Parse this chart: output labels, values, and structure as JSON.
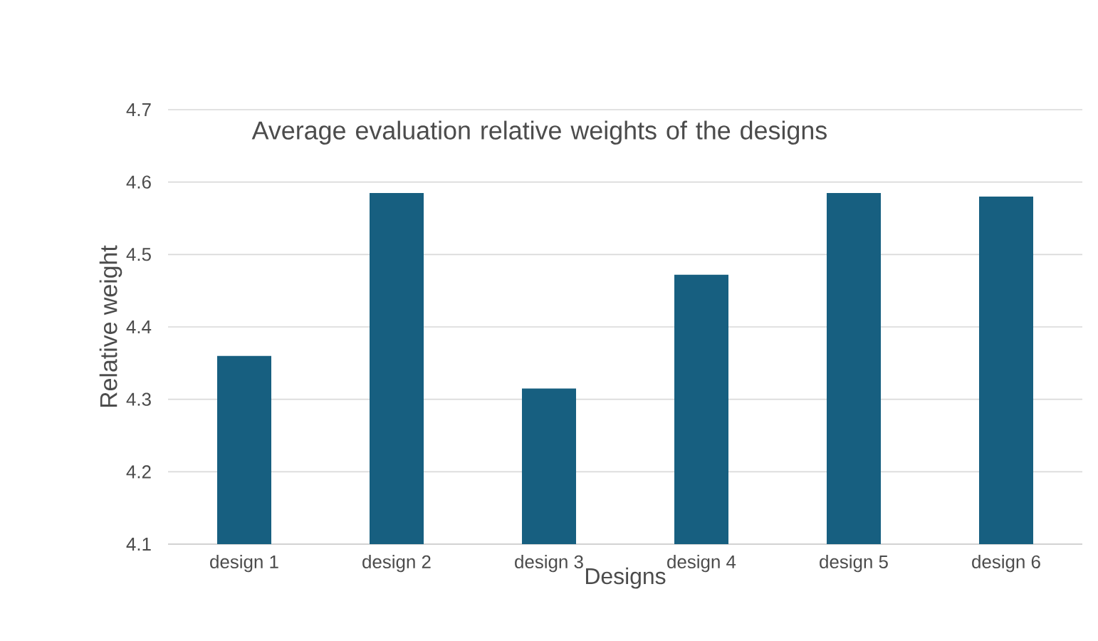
{
  "chart_data": {
    "type": "bar",
    "title": "Average evaluation relative weights of the designs",
    "xlabel": "Designs",
    "ylabel": "Relative weight",
    "categories": [
      "design 1",
      "design 2",
      "design 3",
      "design 4",
      "design 5",
      "design 6"
    ],
    "values": [
      4.36,
      4.585,
      4.315,
      4.472,
      4.585,
      4.58
    ],
    "color": "#175f80",
    "ylim": [
      4.1,
      4.7
    ],
    "yticks": [
      4.1,
      4.2,
      4.3,
      4.4,
      4.5,
      4.6,
      4.7
    ],
    "grid": "y"
  }
}
